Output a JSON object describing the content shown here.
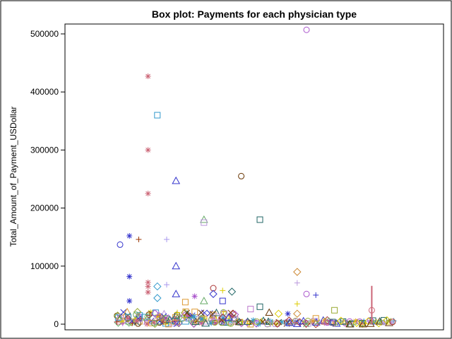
{
  "chart_data": {
    "type": "scatter",
    "title": "Box plot: Payments for each physician type",
    "ylabel": "Total_Amount_of_Payment_USDollar",
    "xlabel": "",
    "ylim": [
      0,
      520000
    ],
    "yticks": [
      0,
      100000,
      200000,
      300000,
      400000,
      500000
    ],
    "ytick_labels": [
      "0",
      "100000",
      "200000",
      "300000",
      "400000",
      "500000"
    ],
    "grid": false,
    "legend": "none",
    "points": [
      {
        "group": 1,
        "y": 137000,
        "marker": "circle",
        "color": "#3333cc"
      },
      {
        "group": 2,
        "y": 152000,
        "marker": "asterisk",
        "color": "#3333cc"
      },
      {
        "group": 2,
        "y": 82000,
        "marker": "asterisk",
        "color": "#3333cc"
      },
      {
        "group": 2,
        "y": 40000,
        "marker": "asterisk",
        "color": "#3333cc"
      },
      {
        "group": 3,
        "y": 146000,
        "marker": "plus",
        "color": "#993300"
      },
      {
        "group": 4,
        "y": 427000,
        "marker": "asterisk",
        "color": "#cc6677"
      },
      {
        "group": 4,
        "y": 300000,
        "marker": "asterisk",
        "color": "#cc6677"
      },
      {
        "group": 4,
        "y": 225000,
        "marker": "asterisk",
        "color": "#cc6677"
      },
      {
        "group": 4,
        "y": 72000,
        "marker": "asterisk",
        "color": "#cc6677"
      },
      {
        "group": 4,
        "y": 65000,
        "marker": "asterisk",
        "color": "#cc6677"
      },
      {
        "group": 4,
        "y": 55000,
        "marker": "asterisk",
        "color": "#cc6677"
      },
      {
        "group": 5,
        "y": 360000,
        "marker": "square",
        "color": "#3399cc"
      },
      {
        "group": 5,
        "y": 65000,
        "marker": "diamond",
        "color": "#3399cc"
      },
      {
        "group": 5,
        "y": 45000,
        "marker": "diamond",
        "color": "#3399cc"
      },
      {
        "group": 6,
        "y": 146000,
        "marker": "plus",
        "color": "#aa99ee"
      },
      {
        "group": 6,
        "y": 68000,
        "marker": "plus",
        "color": "#aa99ee"
      },
      {
        "group": 7,
        "y": 247000,
        "marker": "triangle",
        "color": "#3333cc"
      },
      {
        "group": 7,
        "y": 100000,
        "marker": "triangle",
        "color": "#3333cc"
      },
      {
        "group": 7,
        "y": 52000,
        "marker": "triangle",
        "color": "#3333cc"
      },
      {
        "group": 8,
        "y": 38000,
        "marker": "square",
        "color": "#dd9933"
      },
      {
        "group": 9,
        "y": 48000,
        "marker": "asterisk",
        "color": "#aa55cc"
      },
      {
        "group": 10,
        "y": 180000,
        "marker": "triangle",
        "color": "#66aa66"
      },
      {
        "group": 10,
        "y": 175000,
        "marker": "square",
        "color": "#bb99dd"
      },
      {
        "group": 10,
        "y": 40000,
        "marker": "triangle",
        "color": "#66aa66"
      },
      {
        "group": 11,
        "y": 62000,
        "marker": "circle",
        "color": "#aa3333"
      },
      {
        "group": 11,
        "y": 52000,
        "marker": "diamond",
        "color": "#3333cc"
      },
      {
        "group": 12,
        "y": 58000,
        "marker": "plus",
        "color": "#ddcc00"
      },
      {
        "group": 12,
        "y": 40000,
        "marker": "square",
        "color": "#3333cc"
      },
      {
        "group": 13,
        "y": 56000,
        "marker": "diamond",
        "color": "#226666"
      },
      {
        "group": 14,
        "y": 255000,
        "marker": "circle",
        "color": "#663300"
      },
      {
        "group": 15,
        "y": 26000,
        "marker": "square",
        "color": "#bb77cc"
      },
      {
        "group": 16,
        "y": 180000,
        "marker": "square",
        "color": "#226666"
      },
      {
        "group": 16,
        "y": 30000,
        "marker": "square",
        "color": "#226666"
      },
      {
        "group": 17,
        "y": 20000,
        "marker": "triangle",
        "color": "#663300"
      },
      {
        "group": 18,
        "y": 18000,
        "marker": "diamond",
        "color": "#ddcc00"
      },
      {
        "group": 19,
        "y": 18000,
        "marker": "asterisk",
        "color": "#3333cc"
      },
      {
        "group": 20,
        "y": 90000,
        "marker": "diamond",
        "color": "#cc8833"
      },
      {
        "group": 20,
        "y": 71000,
        "marker": "plus",
        "color": "#bb99dd"
      },
      {
        "group": 20,
        "y": 35000,
        "marker": "plus",
        "color": "#ddcc00"
      },
      {
        "group": 20,
        "y": 18000,
        "marker": "diamond",
        "color": "#cc8833"
      },
      {
        "group": 21,
        "y": 507000,
        "marker": "circle",
        "color": "#aa55cc"
      },
      {
        "group": 21,
        "y": 52000,
        "marker": "circle",
        "color": "#aa55cc"
      },
      {
        "group": 22,
        "y": 50000,
        "marker": "plus",
        "color": "#3333cc"
      },
      {
        "group": 22,
        "y": 10000,
        "marker": "square",
        "color": "#dd9933"
      },
      {
        "group": 24,
        "y": 24000,
        "marker": "square",
        "color": "#99aa33"
      },
      {
        "group": 28,
        "y": 66000,
        "marker": "whisker",
        "color": "#cc6677"
      },
      {
        "group": 28,
        "y": 24000,
        "marker": "circle",
        "color": "#cc6677"
      }
    ]
  }
}
